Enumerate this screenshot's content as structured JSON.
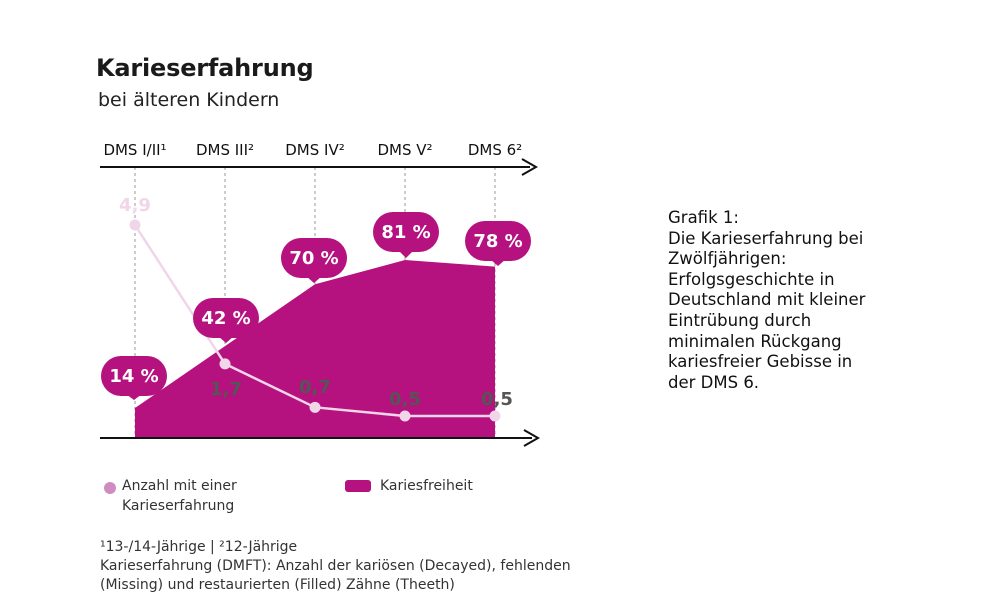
{
  "title": "Karieserfahrung",
  "subtitle": "bei älteren Kindern",
  "chart_data": {
    "type": "area",
    "categories": [
      "DMS I/II¹",
      "DMS III²",
      "DMS IV²",
      "DMS V²",
      "DMS 6²"
    ],
    "series": [
      {
        "name": "Kariesfreiheit",
        "kind": "area",
        "values": [
          14,
          42,
          70,
          81,
          78
        ],
        "labels": [
          "14 %",
          "42 %",
          "70 %",
          "81 %",
          "78 %"
        ],
        "color": "#b5117f"
      },
      {
        "name": "Anzahl mit einer Karieserfahrung",
        "kind": "line",
        "values": [
          4.9,
          1.7,
          0.7,
          0.5,
          0.5
        ],
        "labels": [
          "4,9",
          "1,7",
          "0,7",
          "0,5",
          "0,5"
        ],
        "color": "#f0d6e8"
      }
    ],
    "grid": false,
    "legend_position": "bottom"
  },
  "legend": {
    "line_label_1": "Anzahl mit einer",
    "line_label_2": "Karieserfahrung",
    "area_label": "Kariesfreiheit"
  },
  "footnotes": {
    "line1": "¹13-/14-Jährige | ²12-Jährige",
    "line2": "Karieserfahrung (DMFT): Anzahl der kariösen (Decayed), fehlenden",
    "line3": "(Missing) und restaurierten (Filled) Zähne (Theeth)"
  },
  "caption": {
    "line1": "Grafik 1:",
    "line2": "Die Karieserfahrung bei",
    "line3": "Zwölfjährigen:",
    "line4": "Erfolgsgeschichte in",
    "line5": "Deutschland mit kleiner",
    "line6": "Eintrübung durch",
    "line7": "minimalen Rückgang",
    "line8": "kariesfreier Gebisse in",
    "line9": "der DMS 6."
  },
  "colors": {
    "area": "#b5117f",
    "line": "#f0d6e8",
    "legend_dot": "#d08cc0",
    "axis": "#111111"
  }
}
